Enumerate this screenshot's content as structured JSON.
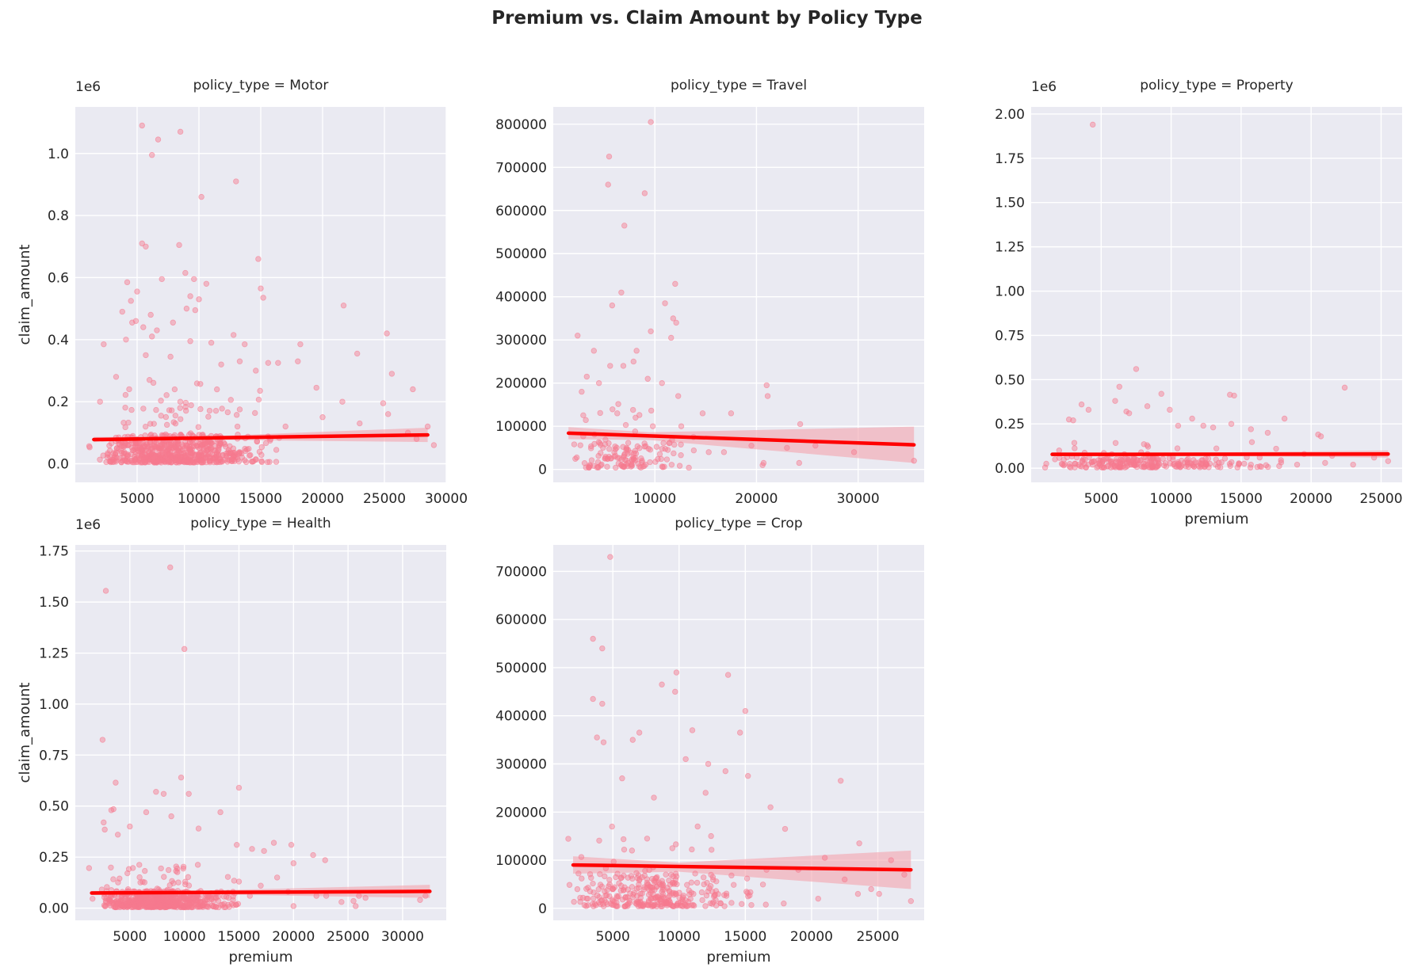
{
  "title": "Premium vs. Claim Amount by Policy Type",
  "colors": {
    "background": "#eaeaf2",
    "grid": "#ffffff",
    "point": "#f7798f",
    "fit": "#ff0000",
    "band": "#f4a3ad"
  },
  "chart_data": [
    {
      "type": "scatter",
      "facet_label": "policy_type = Motor",
      "xlabel": "",
      "ylabel": "claim_amount",
      "y_offset_label": "1e6",
      "xlim": [
        0,
        30000
      ],
      "ylim": [
        -60000,
        1150000
      ],
      "x_ticks": [
        5000,
        10000,
        15000,
        20000,
        25000,
        30000
      ],
      "y_ticks": [
        0,
        200000,
        400000,
        600000,
        800000,
        1000000
      ],
      "y_tick_labels": [
        "0.0",
        "0.2",
        "0.4",
        "0.6",
        "0.8",
        "1.0"
      ],
      "show_x_tick_labels": true,
      "show_y_tick_labels": true,
      "points": [
        [
          5400,
          1090000
        ],
        [
          6700,
          1045000
        ],
        [
          8500,
          1070000
        ],
        [
          6200,
          995000
        ],
        [
          13000,
          910000
        ],
        [
          10200,
          860000
        ],
        [
          5400,
          710000
        ],
        [
          5700,
          700000
        ],
        [
          8400,
          705000
        ],
        [
          14800,
          660000
        ],
        [
          8900,
          615000
        ],
        [
          9600,
          595000
        ],
        [
          4200,
          585000
        ],
        [
          7000,
          595000
        ],
        [
          10600,
          580000
        ],
        [
          5000,
          555000
        ],
        [
          15000,
          565000
        ],
        [
          9300,
          540000
        ],
        [
          15200,
          535000
        ],
        [
          4500,
          525000
        ],
        [
          10000,
          530000
        ],
        [
          21700,
          510000
        ],
        [
          9000,
          500000
        ],
        [
          9700,
          495000
        ],
        [
          3800,
          490000
        ],
        [
          6100,
          480000
        ],
        [
          4900,
          460000
        ],
        [
          4600,
          455000
        ],
        [
          7900,
          455000
        ],
        [
          5500,
          440000
        ],
        [
          6600,
          430000
        ],
        [
          12800,
          415000
        ],
        [
          25200,
          420000
        ],
        [
          6200,
          410000
        ],
        [
          4100,
          400000
        ],
        [
          9300,
          395000
        ],
        [
          11000,
          390000
        ],
        [
          13700,
          385000
        ],
        [
          18200,
          385000
        ],
        [
          2300,
          385000
        ],
        [
          22800,
          355000
        ],
        [
          5700,
          350000
        ],
        [
          7700,
          345000
        ],
        [
          13300,
          330000
        ],
        [
          15600,
          325000
        ],
        [
          16400,
          325000
        ],
        [
          18000,
          330000
        ],
        [
          11800,
          320000
        ],
        [
          14600,
          300000
        ],
        [
          25600,
          290000
        ],
        [
          3300,
          280000
        ],
        [
          6000,
          270000
        ],
        [
          19500,
          245000
        ],
        [
          27300,
          240000
        ],
        [
          24900,
          195000
        ],
        [
          21600,
          200000
        ],
        [
          13300,
          175000
        ],
        [
          23000,
          130000
        ],
        [
          28500,
          120000
        ],
        [
          2000,
          200000
        ],
        [
          26900,
          100000
        ],
        [
          27600,
          80000
        ],
        [
          29000,
          60000
        ],
        [
          20000,
          150000
        ],
        [
          17000,
          120000
        ],
        [
          25300,
          160000
        ]
      ],
      "cloud": {
        "n": 700,
        "x": [
          2500,
          16500
        ],
        "xc": 8000,
        "ysmall": 90000,
        "ybig": 260000
      },
      "fit": {
        "x": [
          1500,
          28500
        ],
        "y": [
          78000,
          93000
        ]
      },
      "band": [
        {
          "x": 1500,
          "lo": 70000,
          "hi": 86000
        },
        {
          "x": 9000,
          "lo": 78000,
          "hi": 86000
        },
        {
          "x": 28500,
          "lo": 70000,
          "hi": 116000
        }
      ]
    },
    {
      "type": "scatter",
      "facet_label": "policy_type = Travel",
      "xlabel": "",
      "ylabel": "",
      "y_offset_label": "",
      "xlim": [
        0,
        36500
      ],
      "ylim": [
        -30000,
        840000
      ],
      "x_ticks": [
        10000,
        20000,
        30000
      ],
      "y_ticks": [
        0,
        100000,
        200000,
        300000,
        400000,
        500000,
        600000,
        700000,
        800000
      ],
      "y_tick_labels": [
        "0",
        "100000",
        "200000",
        "300000",
        "400000",
        "500000",
        "600000",
        "700000",
        "800000"
      ],
      "show_x_tick_labels": true,
      "show_y_tick_labels": true,
      "points": [
        [
          9600,
          805000
        ],
        [
          5500,
          725000
        ],
        [
          5400,
          660000
        ],
        [
          9000,
          640000
        ],
        [
          7000,
          565000
        ],
        [
          6700,
          410000
        ],
        [
          5800,
          380000
        ],
        [
          11000,
          385000
        ],
        [
          12000,
          430000
        ],
        [
          11800,
          350000
        ],
        [
          12100,
          340000
        ],
        [
          9600,
          320000
        ],
        [
          11600,
          305000
        ],
        [
          2400,
          310000
        ],
        [
          8200,
          275000
        ],
        [
          4000,
          275000
        ],
        [
          7900,
          250000
        ],
        [
          5600,
          240000
        ],
        [
          6900,
          240000
        ],
        [
          9300,
          210000
        ],
        [
          4500,
          200000
        ],
        [
          3300,
          215000
        ],
        [
          2800,
          180000
        ],
        [
          10700,
          200000
        ],
        [
          12300,
          170000
        ],
        [
          21000,
          195000
        ],
        [
          21100,
          170000
        ],
        [
          14700,
          130000
        ],
        [
          17500,
          130000
        ],
        [
          24300,
          105000
        ],
        [
          19500,
          55000
        ],
        [
          23000,
          50000
        ],
        [
          25800,
          55000
        ],
        [
          29600,
          40000
        ],
        [
          20600,
          10000
        ],
        [
          20700,
          15000
        ],
        [
          24200,
          15000
        ],
        [
          16800,
          40000
        ],
        [
          35500,
          20000
        ],
        [
          13800,
          75000
        ],
        [
          15300,
          40000
        ],
        [
          4900,
          50000
        ],
        [
          12600,
          100000
        ],
        [
          9800,
          100000
        ],
        [
          8100,
          120000
        ],
        [
          6300,
          130000
        ]
      ],
      "cloud": {
        "n": 140,
        "x": [
          2000,
          14000
        ],
        "xc": 7000,
        "ysmall": 60000,
        "ybig": 150000
      },
      "fit": {
        "x": [
          1500,
          35500
        ],
        "y": [
          84000,
          57000
        ]
      },
      "band": [
        {
          "x": 1500,
          "lo": 70000,
          "hi": 98000
        },
        {
          "x": 9500,
          "lo": 68000,
          "hi": 86000
        },
        {
          "x": 35500,
          "lo": 15000,
          "hi": 99000
        }
      ]
    },
    {
      "type": "scatter",
      "facet_label": "policy_type = Property",
      "xlabel": "premium",
      "ylabel": "",
      "y_offset_label": "1e6",
      "xlim": [
        0,
        26500
      ],
      "ylim": [
        -80000,
        2040000
      ],
      "x_ticks": [
        5000,
        10000,
        15000,
        20000,
        25000
      ],
      "y_ticks": [
        0,
        250000,
        500000,
        750000,
        1000000,
        1250000,
        1500000,
        1750000,
        2000000
      ],
      "y_tick_labels": [
        "0.00",
        "0.25",
        "0.50",
        "0.75",
        "1.00",
        "1.25",
        "1.50",
        "1.75",
        "2.00"
      ],
      "show_x_tick_labels": true,
      "show_y_tick_labels": true,
      "points": [
        [
          4400,
          1940000
        ],
        [
          7500,
          560000
        ],
        [
          6300,
          460000
        ],
        [
          22400,
          455000
        ],
        [
          9300,
          420000
        ],
        [
          14200,
          415000
        ],
        [
          14500,
          410000
        ],
        [
          6000,
          380000
        ],
        [
          3600,
          360000
        ],
        [
          8300,
          350000
        ],
        [
          4100,
          330000
        ],
        [
          9900,
          330000
        ],
        [
          6800,
          320000
        ],
        [
          7000,
          310000
        ],
        [
          11500,
          280000
        ],
        [
          18100,
          280000
        ],
        [
          2700,
          275000
        ],
        [
          3000,
          270000
        ],
        [
          14300,
          250000
        ],
        [
          12300,
          240000
        ],
        [
          15700,
          220000
        ],
        [
          10500,
          240000
        ],
        [
          13000,
          230000
        ],
        [
          16900,
          200000
        ],
        [
          20500,
          190000
        ],
        [
          20700,
          180000
        ],
        [
          17500,
          110000
        ],
        [
          19500,
          80000
        ],
        [
          21500,
          70000
        ],
        [
          24500,
          60000
        ],
        [
          25500,
          40000
        ],
        [
          19000,
          20000
        ],
        [
          21000,
          30000
        ],
        [
          23000,
          20000
        ],
        [
          15700,
          20000
        ],
        [
          1700,
          50000
        ],
        [
          2000,
          100000
        ]
      ],
      "cloud": {
        "n": 260,
        "x": [
          2000,
          18000
        ],
        "xc": 7500,
        "ysmall": 60000,
        "ybig": 150000
      },
      "fit": {
        "x": [
          1500,
          25500
        ],
        "y": [
          78000,
          80000
        ]
      },
      "band": [
        {
          "x": 1500,
          "lo": 68000,
          "hi": 90000
        },
        {
          "x": 9000,
          "lo": 72000,
          "hi": 86000
        },
        {
          "x": 25500,
          "lo": 60000,
          "hi": 100000
        }
      ]
    },
    {
      "type": "scatter",
      "facet_label": "policy_type = Health",
      "xlabel": "premium",
      "ylabel": "claim_amount",
      "y_offset_label": "1e6",
      "xlim": [
        0,
        34000
      ],
      "ylim": [
        -60000,
        1780000
      ],
      "x_ticks": [
        5000,
        10000,
        15000,
        20000,
        25000,
        30000
      ],
      "y_ticks": [
        0,
        250000,
        500000,
        750000,
        1000000,
        1250000,
        1500000,
        1750000
      ],
      "y_tick_labels": [
        "0.00",
        "0.25",
        "0.50",
        "0.75",
        "1.00",
        "1.25",
        "1.50",
        "1.75"
      ],
      "show_x_tick_labels": true,
      "show_y_tick_labels": true,
      "points": [
        [
          8700,
          1670000
        ],
        [
          2800,
          1555000
        ],
        [
          10000,
          1270000
        ],
        [
          2500,
          825000
        ],
        [
          9700,
          640000
        ],
        [
          3700,
          615000
        ],
        [
          15000,
          590000
        ],
        [
          7400,
          570000
        ],
        [
          8100,
          560000
        ],
        [
          10400,
          560000
        ],
        [
          6500,
          470000
        ],
        [
          8800,
          450000
        ],
        [
          13300,
          470000
        ],
        [
          3300,
          480000
        ],
        [
          3500,
          485000
        ],
        [
          2600,
          420000
        ],
        [
          5000,
          400000
        ],
        [
          2700,
          385000
        ],
        [
          11300,
          390000
        ],
        [
          3900,
          360000
        ],
        [
          18200,
          320000
        ],
        [
          19800,
          310000
        ],
        [
          14800,
          310000
        ],
        [
          16200,
          290000
        ],
        [
          17300,
          280000
        ],
        [
          20000,
          220000
        ],
        [
          21800,
          260000
        ],
        [
          22900,
          235000
        ],
        [
          23000,
          60000
        ],
        [
          24400,
          30000
        ],
        [
          25500,
          35000
        ],
        [
          26000,
          60000
        ],
        [
          26600,
          50000
        ],
        [
          25700,
          10000
        ],
        [
          31600,
          40000
        ],
        [
          32100,
          60000
        ],
        [
          20000,
          10000
        ],
        [
          22100,
          60000
        ],
        [
          19500,
          80000
        ],
        [
          18500,
          150000
        ],
        [
          17000,
          110000
        ],
        [
          16000,
          60000
        ],
        [
          15000,
          130000
        ]
      ],
      "cloud": {
        "n": 650,
        "x": [
          2500,
          15000
        ],
        "xc": 7500,
        "ysmall": 80000,
        "ybig": 210000
      },
      "fit": {
        "x": [
          1500,
          32500
        ],
        "y": [
          74000,
          82000
        ]
      },
      "band": [
        {
          "x": 1500,
          "lo": 64000,
          "hi": 84000
        },
        {
          "x": 9000,
          "lo": 70000,
          "hi": 82000
        },
        {
          "x": 32500,
          "lo": 50000,
          "hi": 114000
        }
      ]
    },
    {
      "type": "scatter",
      "facet_label": "policy_type = Crop",
      "xlabel": "premium",
      "ylabel": "",
      "y_offset_label": "",
      "xlim": [
        500,
        28500
      ],
      "ylim": [
        -25000,
        755000
      ],
      "x_ticks": [
        5000,
        10000,
        15000,
        20000,
        25000
      ],
      "y_ticks": [
        0,
        100000,
        200000,
        300000,
        400000,
        500000,
        600000,
        700000
      ],
      "y_tick_labels": [
        "0",
        "100000",
        "200000",
        "300000",
        "400000",
        "500000",
        "600000",
        "700000"
      ],
      "show_x_tick_labels": true,
      "show_y_tick_labels": true,
      "points": [
        [
          4800,
          730000
        ],
        [
          3500,
          560000
        ],
        [
          4200,
          540000
        ],
        [
          9800,
          490000
        ],
        [
          13700,
          485000
        ],
        [
          8700,
          465000
        ],
        [
          9700,
          450000
        ],
        [
          3500,
          435000
        ],
        [
          4200,
          425000
        ],
        [
          15000,
          410000
        ],
        [
          11000,
          370000
        ],
        [
          7000,
          365000
        ],
        [
          3800,
          355000
        ],
        [
          14600,
          365000
        ],
        [
          4300,
          345000
        ],
        [
          6500,
          350000
        ],
        [
          10500,
          310000
        ],
        [
          12200,
          300000
        ],
        [
          13500,
          285000
        ],
        [
          15200,
          275000
        ],
        [
          16900,
          210000
        ],
        [
          22200,
          265000
        ],
        [
          23600,
          135000
        ],
        [
          18000,
          165000
        ],
        [
          21000,
          105000
        ],
        [
          19000,
          80000
        ],
        [
          22500,
          60000
        ],
        [
          24500,
          40000
        ],
        [
          23500,
          30000
        ],
        [
          25100,
          30000
        ],
        [
          27500,
          15000
        ],
        [
          27000,
          70000
        ],
        [
          26000,
          100000
        ],
        [
          20500,
          20000
        ],
        [
          17900,
          10000
        ],
        [
          16600,
          80000
        ],
        [
          12000,
          240000
        ],
        [
          11400,
          170000
        ],
        [
          8100,
          230000
        ],
        [
          5700,
          270000
        ]
      ],
      "cloud": {
        "n": 330,
        "x": [
          2500,
          17000
        ],
        "xc": 7500,
        "ysmall": 70000,
        "ybig": 170000
      },
      "fit": {
        "x": [
          2000,
          27500
        ],
        "y": [
          90000,
          80000
        ]
      },
      "band": [
        {
          "x": 2000,
          "lo": 72000,
          "hi": 108000
        },
        {
          "x": 10000,
          "lo": 76000,
          "hi": 95000
        },
        {
          "x": 27500,
          "lo": 40000,
          "hi": 120000
        }
      ]
    }
  ]
}
